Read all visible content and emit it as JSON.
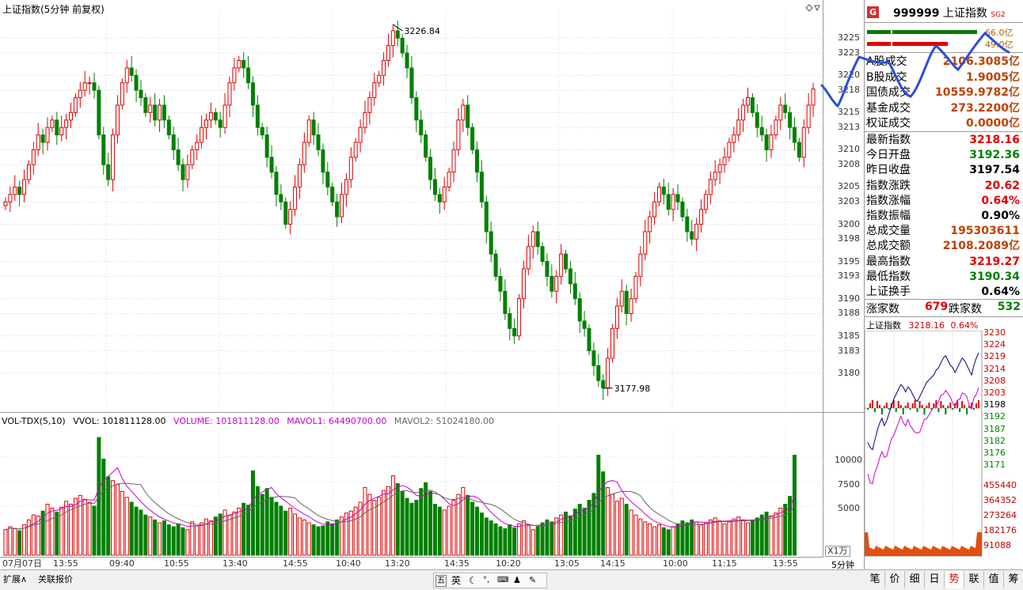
{
  "main_chart": {
    "title": "上证指数(5分钟 前复权)",
    "high_label": "3226.84",
    "low_label": "3177.98",
    "price_ticks": [
      "3225",
      "3223",
      "3220",
      "3218",
      "3215",
      "3213",
      "3210",
      "3208",
      "3205",
      "3203",
      "3200",
      "3198",
      "3195",
      "3193",
      "3190",
      "3188",
      "3185",
      "3183",
      "3180"
    ]
  },
  "volume_chart": {
    "indicator": "VOL-TDX(5,10)",
    "vvol": "VVOL: 101811128.00",
    "volume": "VOLUME: 101811128.00",
    "mavol1": "MAVOL1: 64490700.00",
    "mavol2": "MAVOL2: 51024180.00",
    "ticks": [
      "10000",
      "7500",
      "5000"
    ],
    "unit": "X1万"
  },
  "time_axis": {
    "labels": [
      "07月07日",
      "13:55",
      "09:40",
      "10:55",
      "13:40",
      "14:55",
      "10:40",
      "13:20",
      "14:35",
      "10:20",
      "13:05",
      "14:15",
      "10:00",
      "11:15",
      "13:55"
    ],
    "period": "5分钟"
  },
  "chart_data": {
    "type": "candlestick",
    "title": "上证指数(5分钟 前复权)",
    "ylim": [
      3177,
      3228
    ],
    "high": 3226.84,
    "low": 3177.98,
    "closes": [
      3203,
      3204,
      3205,
      3204,
      3206,
      3208,
      3210,
      3212,
      3211,
      3213,
      3214,
      3212,
      3213,
      3214,
      3215,
      3217,
      3218,
      3219,
      3219,
      3218,
      3212,
      3208,
      3206,
      3212,
      3216,
      3219,
      3221,
      3220,
      3218,
      3217,
      3215,
      3216,
      3214,
      3216,
      3214,
      3212,
      3210,
      3208,
      3206,
      3208,
      3210,
      3211,
      3213,
      3214,
      3215,
      3214,
      3213,
      3216,
      3219,
      3221,
      3222,
      3221,
      3219,
      3216,
      3213,
      3212,
      3209,
      3207,
      3204,
      3203,
      3200,
      3202,
      3205,
      3208,
      3211,
      3214,
      3212,
      3210,
      3207,
      3205,
      3203,
      3201,
      3204,
      3206,
      3209,
      3211,
      3213,
      3215,
      3217,
      3219,
      3220,
      3222,
      3224,
      3226,
      3225,
      3223,
      3221,
      3217,
      3214,
      3212,
      3209,
      3206,
      3204,
      3203,
      3205,
      3207,
      3210,
      3214,
      3216,
      3213,
      3210,
      3207,
      3203,
      3199,
      3196,
      3193,
      3191,
      3188,
      3186,
      3185,
      3190,
      3194,
      3197,
      3199,
      3197,
      3195,
      3193,
      3191,
      3193,
      3196,
      3194,
      3192,
      3190,
      3187,
      3186,
      3183,
      3181,
      3179,
      3178,
      3182,
      3186,
      3189,
      3191,
      3188,
      3190,
      3193,
      3196,
      3199,
      3201,
      3203,
      3205,
      3204,
      3202,
      3204,
      3203,
      3201,
      3199,
      3198,
      3200,
      3202,
      3204,
      3206,
      3207,
      3208,
      3209,
      3211,
      3212,
      3214,
      3216,
      3217,
      3215,
      3213,
      3212,
      3210,
      3212,
      3214,
      3216,
      3215,
      3213,
      3211,
      3209,
      3213,
      3216,
      3218.16
    ],
    "volumes": [
      2.6,
      2.9,
      2.7,
      2.5,
      3.1,
      3.6,
      4.1,
      4.0,
      4.5,
      5.2,
      4.8,
      4.4,
      4.9,
      5.5,
      5.2,
      5.8,
      6.1,
      5.7,
      5.4,
      5.0,
      12.0,
      9.8,
      8.0,
      7.6,
      7.2,
      6.5,
      5.9,
      5.4,
      4.9,
      4.6,
      4.1,
      3.9,
      3.6,
      3.3,
      3.5,
      3.1,
      2.9,
      3.2,
      2.8,
      2.6,
      3.4,
      3.0,
      3.3,
      3.7,
      3.5,
      3.9,
      4.2,
      4.6,
      4.1,
      4.4,
      4.8,
      5.3,
      5.1,
      8.6,
      7.0,
      6.2,
      6.8,
      5.9,
      5.4,
      5.0,
      4.5,
      4.8,
      4.2,
      3.8,
      3.6,
      3.3,
      3.1,
      2.9,
      3.0,
      3.4,
      3.2,
      3.6,
      3.9,
      4.3,
      4.5,
      4.9,
      5.4,
      6.9,
      6.2,
      5.6,
      5.9,
      6.6,
      7.0,
      8.1,
      7.3,
      6.5,
      5.8,
      5.3,
      5.6,
      6.8,
      7.4,
      6.5,
      5.2,
      4.9,
      4.6,
      5.0,
      5.6,
      6.2,
      6.9,
      6.1,
      5.4,
      4.9,
      4.3,
      3.8,
      3.5,
      3.2,
      2.9,
      2.7,
      3.1,
      2.8,
      3.2,
      3.5,
      3.0,
      2.6,
      2.9,
      3.3,
      3.6,
      3.4,
      3.8,
      4.1,
      4.4,
      4.0,
      4.7,
      5.2,
      4.8,
      5.6,
      6.3,
      10.2,
      8.5,
      6.9,
      6.2,
      5.5,
      5.8,
      5.2,
      4.6,
      4.1,
      3.7,
      3.4,
      3.2,
      2.9,
      3.1,
      2.8,
      2.6,
      2.9,
      3.2,
      3.5,
      3.3,
      3.6,
      3.4,
      3.1,
      3.3,
      3.6,
      3.8,
      3.5,
      3.2,
      3.4,
      3.7,
      3.9,
      3.6,
      3.3,
      3.5,
      3.8,
      4.1,
      4.4,
      4.0,
      4.3,
      4.8,
      5.2,
      6.0,
      10.2
    ]
  },
  "right_panel": {
    "icon_letter": "G",
    "code": "999999",
    "name": "上证指数",
    "tag": "SG2",
    "bar1_value": "66.0亿",
    "bar2_value": "49.0亿",
    "trading": [
      {
        "label": "A股成交",
        "value": "2106.3085亿"
      },
      {
        "label": "B股成交",
        "value": "1.9005亿"
      },
      {
        "label": "国债成交",
        "value": "10559.9782亿"
      },
      {
        "label": "基金成交",
        "value": "273.2200亿"
      },
      {
        "label": "权证成交",
        "value": "0.0000亿"
      }
    ],
    "stats": [
      {
        "label": "最新指数",
        "value": "3218.16",
        "color": "red"
      },
      {
        "label": "今日开盘",
        "value": "3192.36",
        "color": "green"
      },
      {
        "label": "昨日收盘",
        "value": "3197.54",
        "color": "dark"
      },
      {
        "label": "指数涨跌",
        "value": "20.62",
        "color": "red"
      },
      {
        "label": "指数涨幅",
        "value": "0.64%",
        "color": "red"
      },
      {
        "label": "指数振幅",
        "value": "0.90%",
        "color": "dark"
      },
      {
        "label": "总成交量",
        "value": "195303611",
        "color": "brown"
      },
      {
        "label": "总成交额",
        "value": "2108.2089亿",
        "color": "brown"
      },
      {
        "label": "最高指数",
        "value": "3219.27",
        "color": "red"
      },
      {
        "label": "最低指数",
        "value": "3190.34",
        "color": "green"
      },
      {
        "label": "上证换手",
        "value": "0.64%",
        "color": "dark"
      }
    ],
    "up_label": "涨家数",
    "up_count": "679",
    "down_label": "跌家数",
    "down_count": "532",
    "mini_title": "上证指数",
    "mini_price": "3218.16",
    "mini_pct": "0.64%",
    "mini_price_ticks": [
      "3230",
      "3224",
      "3219",
      "3214",
      "3208",
      "3203",
      "3198",
      "3192",
      "3187",
      "3182",
      "3176",
      "3171"
    ],
    "mini_vol_ticks": [
      "455440",
      "364352",
      "273264",
      "182176",
      "91088"
    ],
    "tabs": [
      "笔",
      "价",
      "细",
      "日",
      "势",
      "联",
      "值",
      "筹"
    ],
    "active_tab": "势"
  },
  "bottom_bar": {
    "btn_expand": "扩展∧",
    "btn_related": "关联报价",
    "ime_icons": [
      "五",
      "英"
    ]
  },
  "colors": {
    "up": "#e00000",
    "down": "#008000",
    "ma1": "#cc00cc",
    "ma2": "#666666",
    "annotation": "#2a4fd6"
  }
}
